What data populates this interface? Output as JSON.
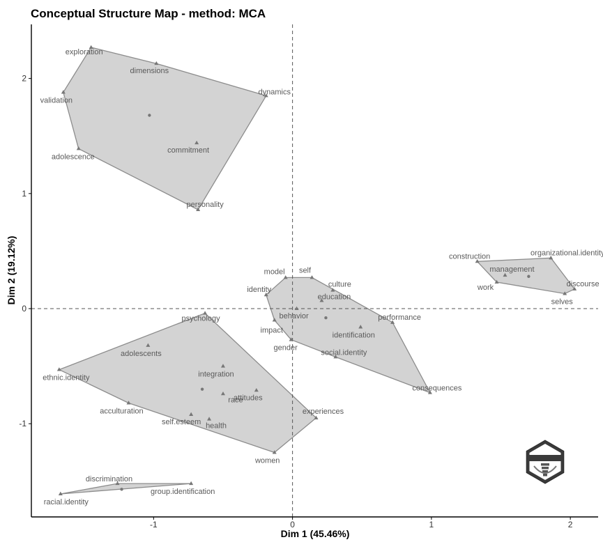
{
  "chart_data": {
    "type": "scatter",
    "title": "Conceptual Structure Map - method: MCA",
    "xlabel": "Dim 1 (45.46%)",
    "ylabel": "Dim 2 (19.12%)",
    "xlim": [
      -1.88,
      2.2
    ],
    "ylim": [
      -1.81,
      2.47
    ],
    "xticks": [
      -1,
      0,
      1,
      2
    ],
    "yticks": [
      -1,
      0,
      1,
      2
    ],
    "reference_lines": {
      "x": 0,
      "y": 0,
      "style": "dashed"
    },
    "grid": false,
    "colors": {
      "hull_fill": "#d3d3d3",
      "hull_stroke": "#8c8c8c",
      "point": "#777777",
      "label": "#595959"
    },
    "clusters": [
      {
        "centroid": [
          -1.03,
          1.68
        ],
        "points": [
          {
            "label": "exploration",
            "x": -1.45,
            "y": 2.27
          },
          {
            "label": "dimensions",
            "x": -0.98,
            "y": 2.13
          },
          {
            "label": "validation",
            "x": -1.65,
            "y": 1.88
          },
          {
            "label": "dynamics",
            "x": -0.19,
            "y": 1.85
          },
          {
            "label": "commitment",
            "x": -0.69,
            "y": 1.44
          },
          {
            "label": "adolescence",
            "x": -1.54,
            "y": 1.39
          },
          {
            "label": "personality",
            "x": -0.68,
            "y": 0.86
          }
        ]
      },
      {
        "centroid": [
          0.24,
          -0.08
        ],
        "points": [
          {
            "label": "self",
            "x": 0.14,
            "y": 0.27
          },
          {
            "label": "model",
            "x": -0.05,
            "y": 0.27
          },
          {
            "label": "culture",
            "x": 0.29,
            "y": 0.16
          },
          {
            "label": "education",
            "x": 0.21,
            "y": 0.07
          },
          {
            "label": "identity",
            "x": -0.19,
            "y": 0.12
          },
          {
            "label": "behavior",
            "x": 0.03,
            "y": 0.0
          },
          {
            "label": "performance",
            "x": 0.72,
            "y": -0.12
          },
          {
            "label": "impact",
            "x": -0.13,
            "y": -0.1
          },
          {
            "label": "identification",
            "x": 0.49,
            "y": -0.16
          },
          {
            "label": "gender",
            "x": -0.01,
            "y": -0.27
          },
          {
            "label": "social.identity",
            "x": 0.31,
            "y": -0.42
          },
          {
            "label": "consequences",
            "x": 0.99,
            "y": -0.73
          }
        ]
      },
      {
        "centroid": [
          1.7,
          0.28
        ],
        "points": [
          {
            "label": "construction",
            "x": 1.33,
            "y": 0.41
          },
          {
            "label": "organizational.identity",
            "x": 1.86,
            "y": 0.44
          },
          {
            "label": "management",
            "x": 1.53,
            "y": 0.29
          },
          {
            "label": "work",
            "x": 1.47,
            "y": 0.23
          },
          {
            "label": "discourse",
            "x": 2.03,
            "y": 0.17
          },
          {
            "label": "selves",
            "x": 1.96,
            "y": 0.13
          }
        ]
      },
      {
        "centroid": [
          -0.65,
          -0.7
        ],
        "points": [
          {
            "label": "psychology",
            "x": -0.63,
            "y": -0.04
          },
          {
            "label": "adolescents",
            "x": -1.04,
            "y": -0.32
          },
          {
            "label": "ethnic.identity",
            "x": -1.68,
            "y": -0.53
          },
          {
            "label": "integration",
            "x": -0.5,
            "y": -0.5
          },
          {
            "label": "race",
            "x": -0.5,
            "y": -0.74
          },
          {
            "label": "attitudes",
            "x": -0.26,
            "y": -0.71
          },
          {
            "label": "acculturation",
            "x": -1.18,
            "y": -0.82
          },
          {
            "label": "self.esteem",
            "x": -0.73,
            "y": -0.92
          },
          {
            "label": "health",
            "x": -0.6,
            "y": -0.96
          },
          {
            "label": "experiences",
            "x": 0.17,
            "y": -0.95
          },
          {
            "label": "women",
            "x": -0.13,
            "y": -1.25
          }
        ]
      },
      {
        "centroid": [
          -1.23,
          -1.57
        ],
        "points": [
          {
            "label": "discrimination",
            "x": -1.26,
            "y": -1.52
          },
          {
            "label": "group.identification",
            "x": -0.73,
            "y": -1.52
          },
          {
            "label": "racial.identity",
            "x": -1.67,
            "y": -1.61
          }
        ]
      }
    ]
  }
}
